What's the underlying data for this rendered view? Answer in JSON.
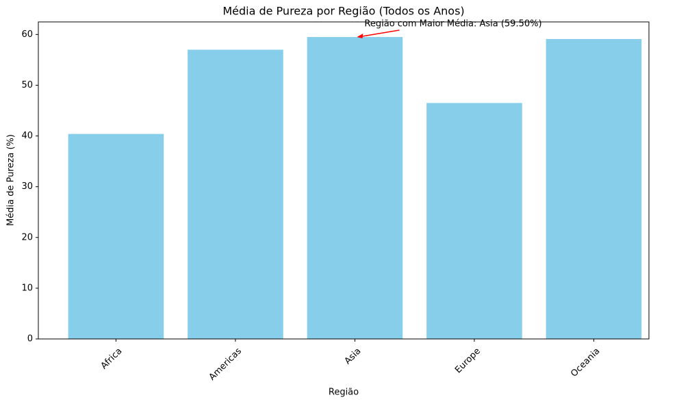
{
  "chart_data": {
    "type": "bar",
    "title": "Média de Pureza por Região (Todos os Anos)",
    "x_label": "Região",
    "y_label": "Média de Pureza (%)",
    "categories": [
      "Africa",
      "Americas",
      "Asia",
      "Europe",
      "Oceania"
    ],
    "values": [
      40.4,
      57.0,
      59.5,
      46.5,
      59.1
    ],
    "color": "#87ceeb",
    "ylim": [
      0,
      62.475
    ],
    "yticks": [
      0,
      10,
      20,
      30,
      40,
      50,
      60
    ],
    "annotation": "Região com Maior Média: Asia (59.50%)",
    "annotation_color": "#ff0000"
  }
}
